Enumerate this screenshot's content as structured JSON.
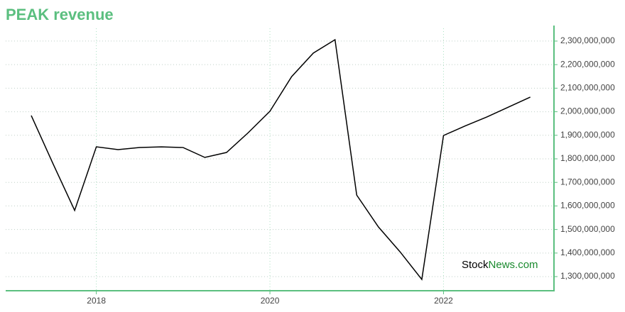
{
  "chart_data": {
    "type": "line",
    "title": "PEAK revenue",
    "watermark": [
      "Stock",
      "News.com"
    ],
    "categories": [
      null,
      null,
      null,
      "2018",
      null,
      null,
      null,
      null,
      null,
      null,
      null,
      "2020",
      null,
      null,
      null,
      null,
      null,
      null,
      null,
      "2022",
      null,
      null,
      null,
      null
    ],
    "series": [
      {
        "name": "PEAK revenue",
        "color": "#000000",
        "values": [
          1984000000,
          1780000000,
          1581000000,
          1851000000,
          1839000000,
          1848000000,
          1851000000,
          1848000000,
          1806000000,
          1827000000,
          1911000000,
          2002000000,
          2149000000,
          2249000000,
          2306000000,
          1646000000,
          1511000000,
          1405000000,
          1288000000,
          1899000000,
          1940000000,
          1978000000,
          2020000000,
          2062000000
        ]
      }
    ],
    "ylim": [
      1240000000,
      2354000000
    ],
    "yticks": [
      {
        "value": 1300000000,
        "label": "1,300,000,000"
      },
      {
        "value": 1400000000,
        "label": "1,400,000,000"
      },
      {
        "value": 1500000000,
        "label": "1,500,000,000"
      },
      {
        "value": 1600000000,
        "label": "1,600,000,000"
      },
      {
        "value": 1700000000,
        "label": "1,700,000,000"
      },
      {
        "value": 1800000000,
        "label": "1,800,000,000"
      },
      {
        "value": 1900000000,
        "label": "1,900,000,000"
      },
      {
        "value": 2000000000,
        "label": "2,000,000,000"
      },
      {
        "value": 2100000000,
        "label": "2,100,000,000"
      },
      {
        "value": 2200000000,
        "label": "2,200,000,000"
      },
      {
        "value": 2300000000,
        "label": "2,300,000,000"
      }
    ],
    "grid": true,
    "axis_color": "#5bbf7f"
  }
}
